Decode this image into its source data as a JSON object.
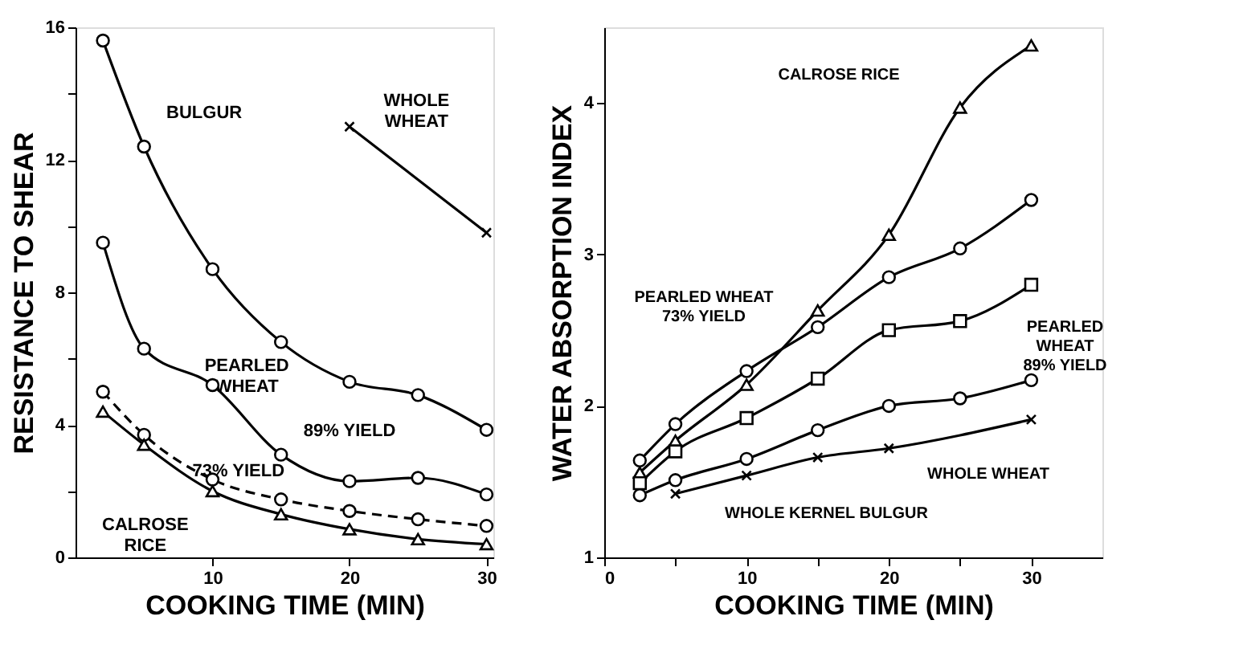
{
  "chart_data": [
    {
      "type": "line",
      "xlabel": "COOKING TIME (MIN)",
      "ylabel": "RESISTANCE TO SHEAR",
      "xlim": [
        0,
        30.5
      ],
      "ylim": [
        0,
        16
      ],
      "xticks": [
        10,
        20,
        30
      ],
      "yticks": [
        0,
        {
          "value": 2,
          "label": null
        },
        4,
        {
          "value": 6,
          "label": null
        },
        8,
        {
          "value": 10,
          "label": null
        },
        12,
        {
          "value": 14,
          "label": null
        },
        16
      ],
      "grid": false,
      "series": [
        {
          "color": "#000000",
          "marker": "cross",
          "line_style": "solid",
          "x": [
            20,
            30
          ],
          "values": [
            13.0,
            9.8
          ]
        },
        {
          "color": "#000000",
          "marker": "circle",
          "line_style": "solid",
          "x": [
            2,
            5,
            10,
            15,
            20,
            25,
            30
          ],
          "values": [
            15.6,
            12.4,
            8.7,
            6.5,
            5.3,
            4.9,
            3.85
          ]
        },
        {
          "color": "#000000",
          "marker": "circle",
          "line_style": "solid",
          "x": [
            2,
            5,
            10,
            15,
            20,
            25,
            30
          ],
          "values": [
            9.5,
            6.3,
            5.2,
            3.1,
            2.3,
            2.4,
            1.9
          ]
        },
        {
          "color": "#000000",
          "marker": "circle",
          "line_style": "dashed",
          "x": [
            2,
            5,
            10,
            15,
            20,
            25,
            30
          ],
          "values": [
            5.0,
            3.7,
            2.35,
            1.75,
            1.4,
            1.15,
            0.95
          ]
        },
        {
          "color": "#000000",
          "marker": "triangle",
          "line_style": "solid",
          "x": [
            2,
            5,
            10,
            15,
            20,
            25,
            30
          ],
          "values": [
            4.4,
            3.4,
            2.0,
            1.3,
            0.85,
            0.55,
            0.4
          ]
        }
      ],
      "annotations": [
        "BULGUR",
        "WHOLE\nWHEAT",
        "PEARLED\nWHEAT",
        "89% YIELD",
        "73% YIELD",
        "CALROSE\nRICE"
      ]
    },
    {
      "type": "line",
      "xlabel": "COOKING TIME (MIN)",
      "ylabel": "WATER ABSORPTION INDEX",
      "xlim": [
        0,
        35
      ],
      "ylim": [
        1,
        4.5
      ],
      "xticks": [
        0,
        {
          "value": 5,
          "label": null
        },
        10,
        {
          "value": 15,
          "label": null
        },
        20,
        {
          "value": 25,
          "label": null
        },
        30
      ],
      "yticks": [
        1,
        2,
        3,
        4
      ],
      "grid": false,
      "series": [
        {
          "color": "#000000",
          "marker": "triangle",
          "line_style": "solid",
          "x": [
            2.5,
            5,
            10,
            15,
            20,
            25,
            30
          ],
          "values": [
            1.56,
            1.77,
            2.14,
            2.63,
            3.13,
            3.97,
            4.38
          ]
        },
        {
          "color": "#000000",
          "marker": "circle",
          "line_style": "solid",
          "x": [
            2.5,
            5,
            10,
            15,
            20,
            25,
            30
          ],
          "values": [
            1.64,
            1.88,
            2.23,
            2.52,
            2.85,
            3.04,
            3.36
          ]
        },
        {
          "color": "#000000",
          "marker": "square",
          "line_style": "solid",
          "x": [
            2.5,
            5,
            10,
            15,
            20,
            25,
            30
          ],
          "values": [
            1.49,
            1.7,
            1.92,
            2.18,
            2.5,
            2.56,
            2.8
          ]
        },
        {
          "color": "#000000",
          "marker": "circle",
          "line_style": "solid",
          "x": [
            2.5,
            5,
            10,
            15,
            20,
            25,
            30
          ],
          "values": [
            1.41,
            1.51,
            1.65,
            1.84,
            2.0,
            2.05,
            2.17
          ]
        },
        {
          "color": "#000000",
          "marker": "cross",
          "line_style": "solid",
          "x": [
            5,
            10,
            15,
            20,
            30
          ],
          "values": [
            1.42,
            1.54,
            1.66,
            1.72,
            1.91
          ]
        }
      ],
      "annotations": [
        "CALROSE RICE",
        "PEARLED WHEAT\n73% YIELD",
        "PEARLED\nWHEAT\n89% YIELD",
        "WHOLE WHEAT",
        "WHOLE KERNEL BULGUR"
      ]
    }
  ]
}
